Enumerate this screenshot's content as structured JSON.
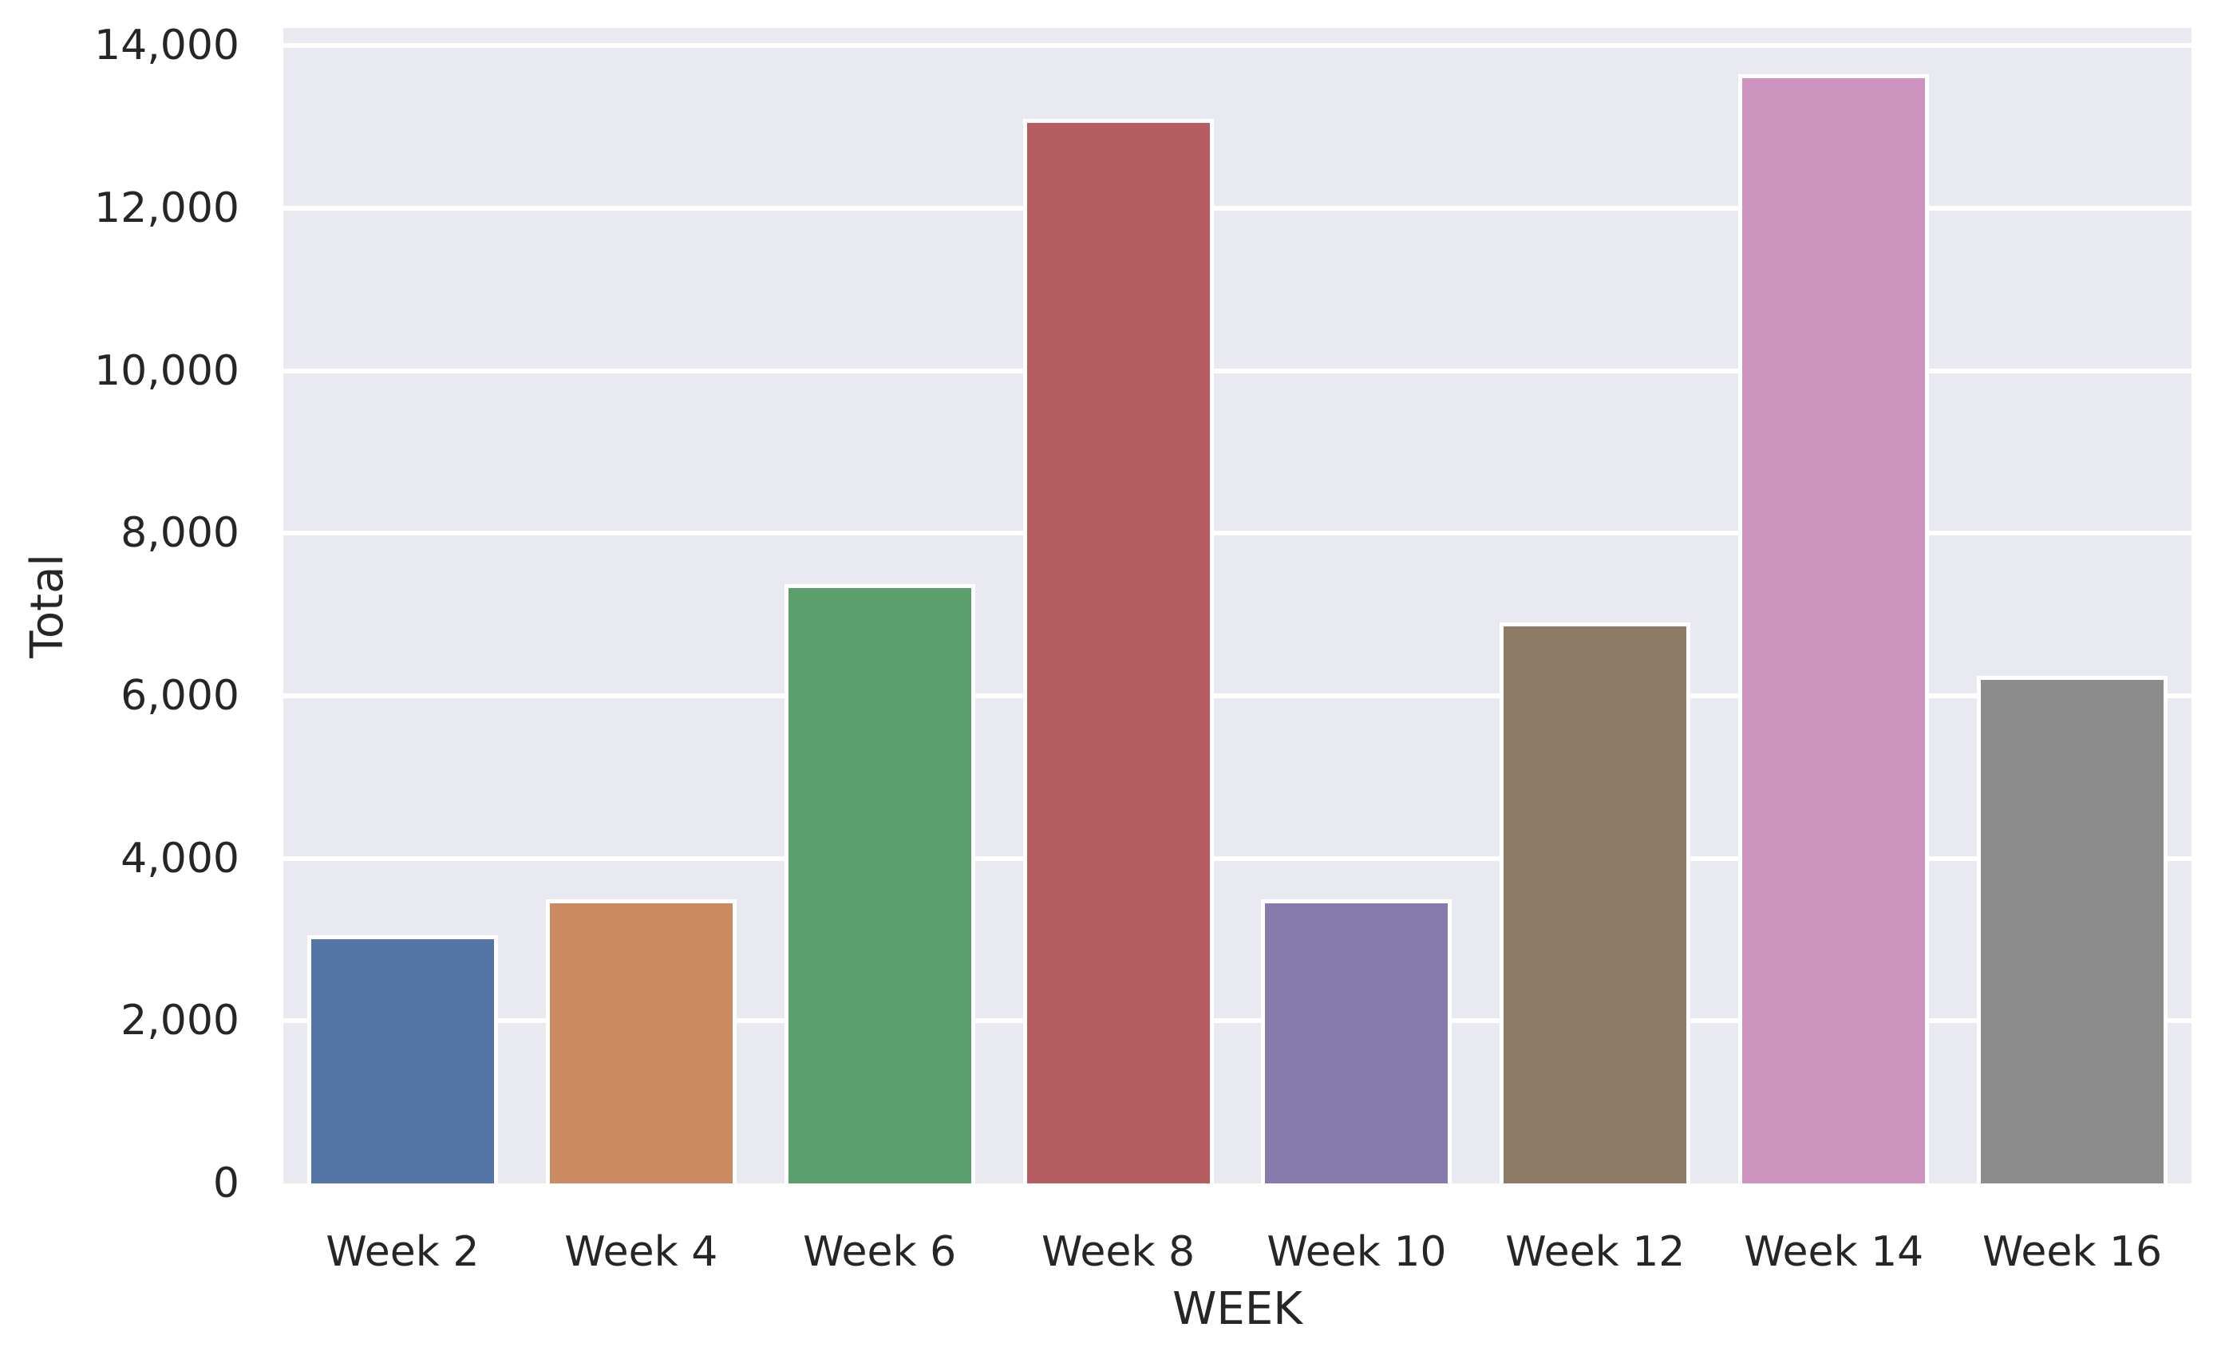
{
  "chart_data": {
    "type": "bar",
    "title": "",
    "categories": [
      "Week 2",
      "Week 4",
      "Week 6",
      "Week 8",
      "Week 10",
      "Week 12",
      "Week 14",
      "Week 16"
    ],
    "values": [
      3050,
      3500,
      7380,
      13100,
      3500,
      6900,
      13650,
      6250
    ],
    "bar_colors": [
      "#5575A7",
      "#CC8A62",
      "#5C9F6E",
      "#B55D60",
      "#877BAD",
      "#8D7B65",
      "#CD94BF",
      "#8C8C8C"
    ],
    "xlabel": "WEEK",
    "ylabel": "Total",
    "ylim": [
      0,
      14220
    ],
    "yticks": [
      0,
      2000,
      4000,
      6000,
      8000,
      10000,
      12000,
      14000
    ],
    "ytick_labels": [
      "0",
      "2,000",
      "4,000",
      "6,000",
      "8,000",
      "10,000",
      "12,000",
      "14,000"
    ],
    "bar_width_fraction": 0.8,
    "grid": "horizontal",
    "legend": "none"
  },
  "style": {
    "page_bg": "#FFFFFF",
    "plot_bg": "#E9E9F1",
    "grid_color": "#FFFFFF",
    "bar_edge_color": "#FFFFFF",
    "text_color": "#262626"
  }
}
